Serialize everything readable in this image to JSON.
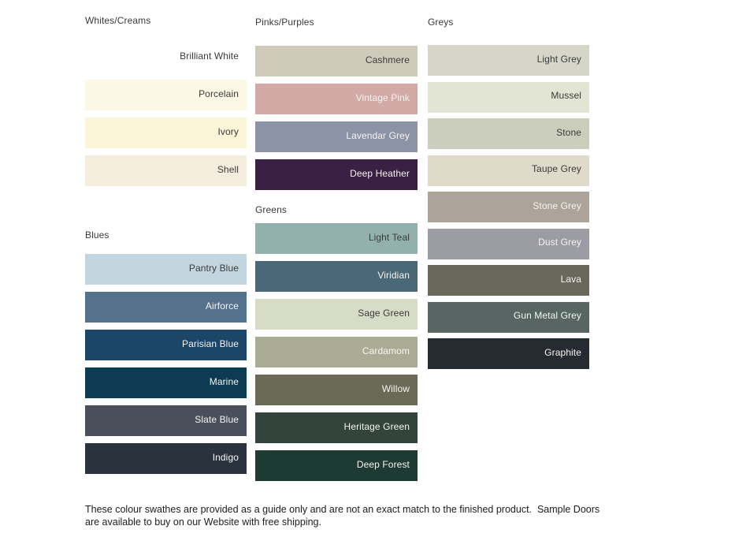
{
  "page": {
    "background": "#ffffff"
  },
  "text_tones": {
    "dark": "#3b3b3b",
    "light": "#f5f4f1"
  },
  "note": {
    "text": "These colour swathes are provided as a guide only and are not an exact match to the finished product.  Sample Doors are available to buy on our Website with free shipping."
  },
  "groups": [
    {
      "id": "whites",
      "title": "Whites/Creams",
      "column": 1,
      "swatches": [
        {
          "name": "Brilliant White",
          "color": "#ffffff",
          "text": "dark"
        },
        {
          "name": "Porcelain",
          "color": "#fbf8e5",
          "text": "dark"
        },
        {
          "name": "Ivory",
          "color": "#faf5d7",
          "text": "dark"
        },
        {
          "name": "Shell",
          "color": "#f4edde",
          "text": "dark"
        }
      ]
    },
    {
      "id": "blues",
      "title": "Blues",
      "column": 1,
      "swatches": [
        {
          "name": "Pantry Blue",
          "color": "#c3d6df",
          "text": "dark"
        },
        {
          "name": "Airforce",
          "color": "#54728c",
          "text": "light"
        },
        {
          "name": "Parisian Blue",
          "color": "#1c4667",
          "text": "light"
        },
        {
          "name": "Marine",
          "color": "#0c3b52",
          "text": "light"
        },
        {
          "name": "Slate Blue",
          "color": "#49505c",
          "text": "light"
        },
        {
          "name": "Indigo",
          "color": "#2a323e",
          "text": "light"
        }
      ]
    },
    {
      "id": "pinks",
      "title": "Pinks/Purples",
      "column": 2,
      "swatches": [
        {
          "name": "Cashmere",
          "color": "#cfc9b9",
          "text": "dark"
        },
        {
          "name": "Vintage Pink",
          "color": "#d3a9a6",
          "text": "light"
        },
        {
          "name": "Lavendar Grey",
          "color": "#8d93a6",
          "text": "light"
        },
        {
          "name": "Deep Heather",
          "color": "#3a2042",
          "text": "light"
        }
      ]
    },
    {
      "id": "greens",
      "title": "Greens",
      "column": 2,
      "swatches": [
        {
          "name": "Light Teal",
          "color": "#93b1ac",
          "text": "dark"
        },
        {
          "name": "Viridian",
          "color": "#4a6877",
          "text": "light"
        },
        {
          "name": "Sage Green",
          "color": "#d7dcc6",
          "text": "dark"
        },
        {
          "name": "Cardamom",
          "color": "#a9ac92",
          "text": "light"
        },
        {
          "name": "Willow",
          "color": "#6b6a57",
          "text": "light"
        },
        {
          "name": "Heritage Green",
          "color": "#32443b",
          "text": "light"
        },
        {
          "name": "Deep Forest",
          "color": "#1e3b33",
          "text": "light"
        }
      ]
    },
    {
      "id": "greys",
      "title": "Greys",
      "column": 3,
      "swatches": [
        {
          "name": "Light Grey",
          "color": "#d5d6c8",
          "text": "dark"
        },
        {
          "name": "Mussel",
          "color": "#e3e5d4",
          "text": "dark"
        },
        {
          "name": "Stone",
          "color": "#cbcebd",
          "text": "dark"
        },
        {
          "name": "Taupe Grey",
          "color": "#e0dacb",
          "text": "dark"
        },
        {
          "name": "Stone Grey",
          "color": "#aca499",
          "text": "light"
        },
        {
          "name": "Dust Grey",
          "color": "#9b9ca4",
          "text": "light"
        },
        {
          "name": "Lava",
          "color": "#6a675b",
          "text": "light"
        },
        {
          "name": "Gun Metal Grey",
          "color": "#576663",
          "text": "light"
        },
        {
          "name": "Graphite",
          "color": "#262b32",
          "text": "light"
        }
      ]
    }
  ]
}
